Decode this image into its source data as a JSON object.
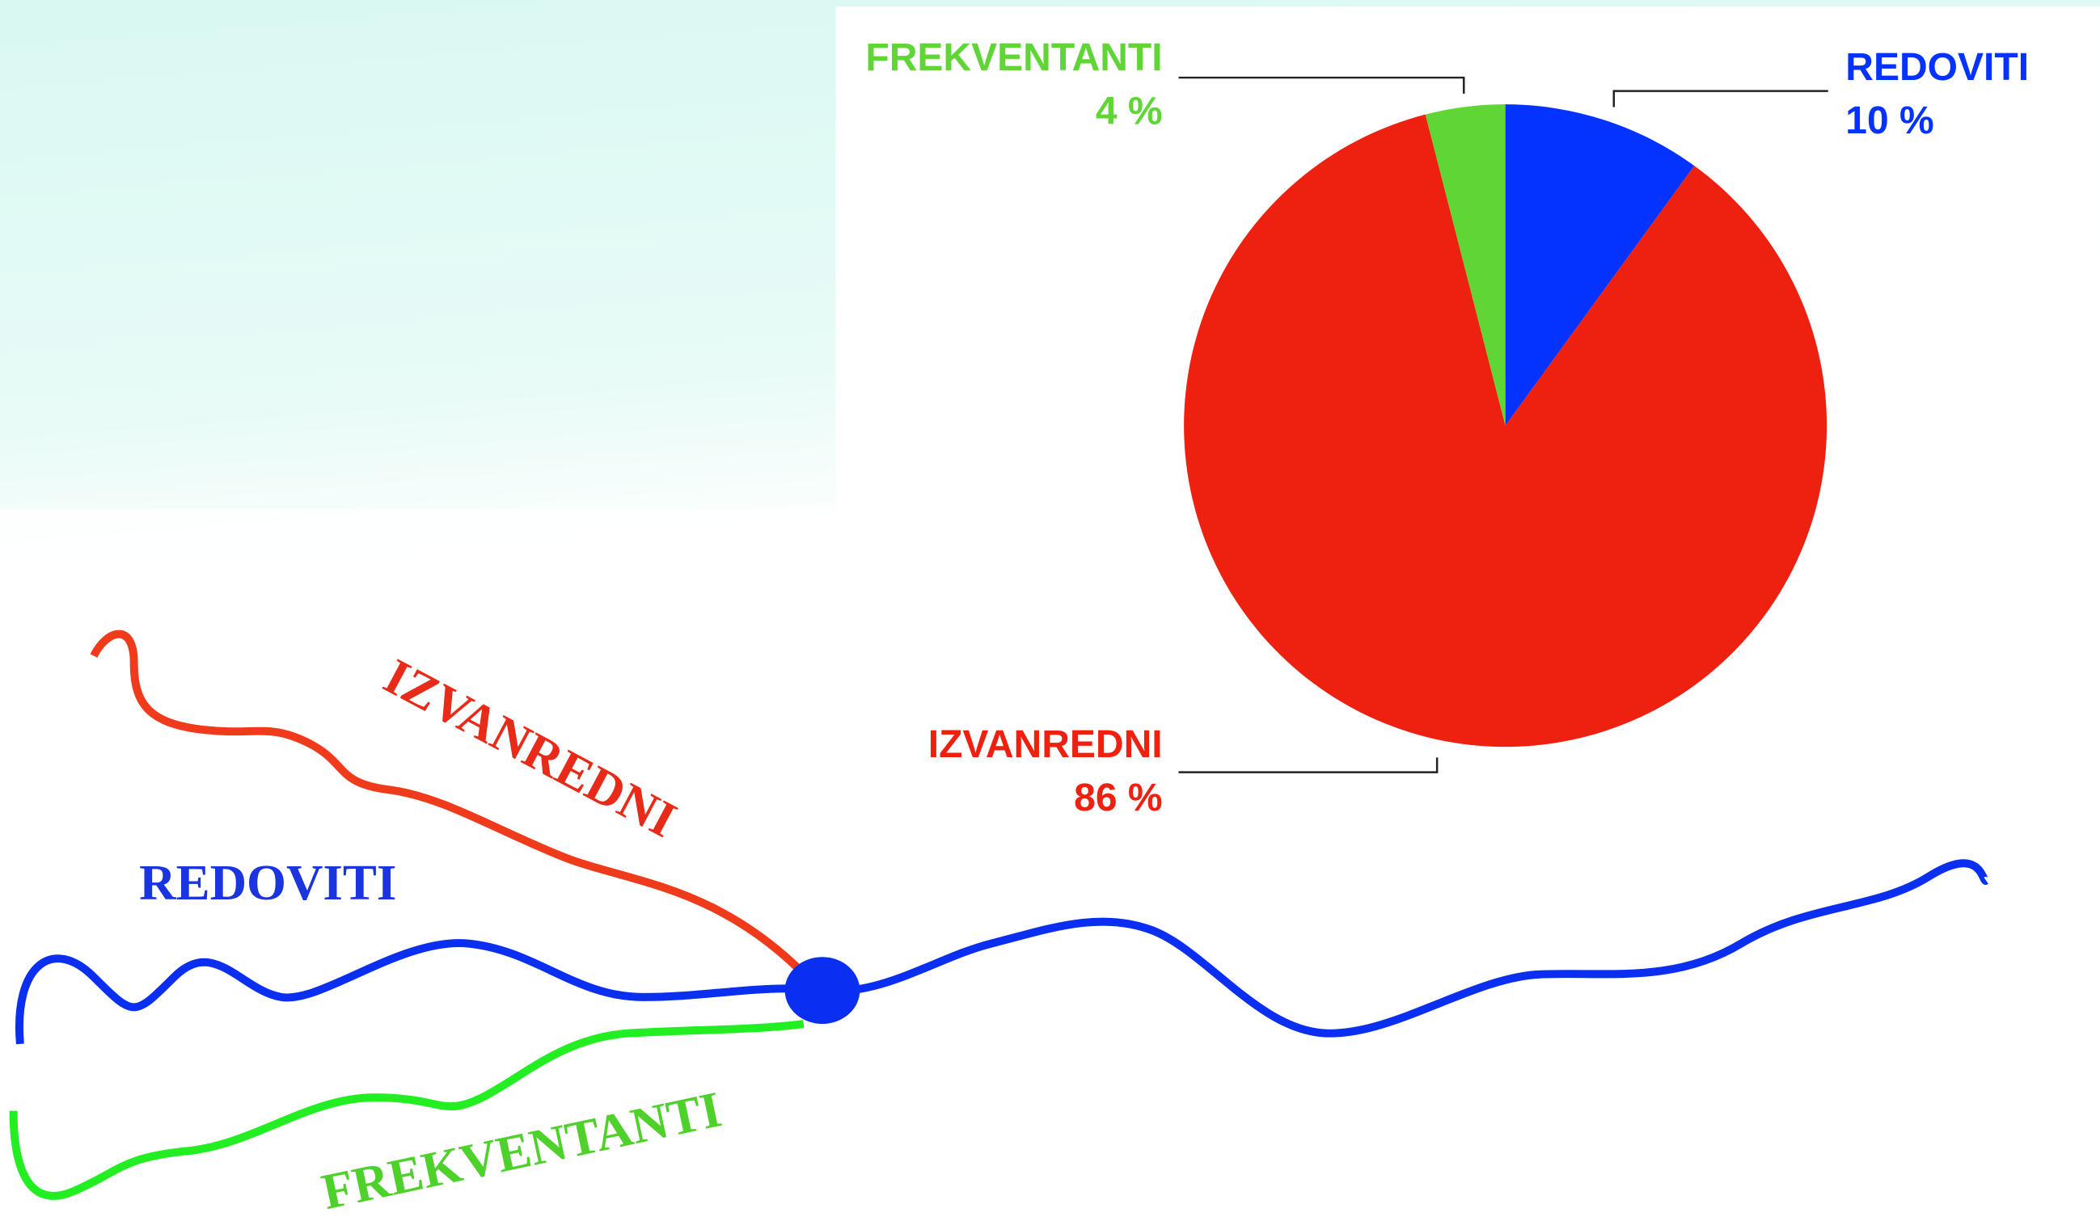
{
  "chart_data": {
    "type": "pie",
    "categories": [
      "REDOVITI",
      "IZVANREDNI",
      "FREKVENTANTI"
    ],
    "values": [
      10,
      86,
      4
    ],
    "value_labels": [
      "10 %",
      "86 %",
      "4 %"
    ],
    "colors": [
      "#0433ff",
      "#ee2010",
      "#5fd536"
    ],
    "annotations": [
      "IZVANREDNI",
      "REDOVITI",
      "FREKVENTANTI"
    ]
  }
}
